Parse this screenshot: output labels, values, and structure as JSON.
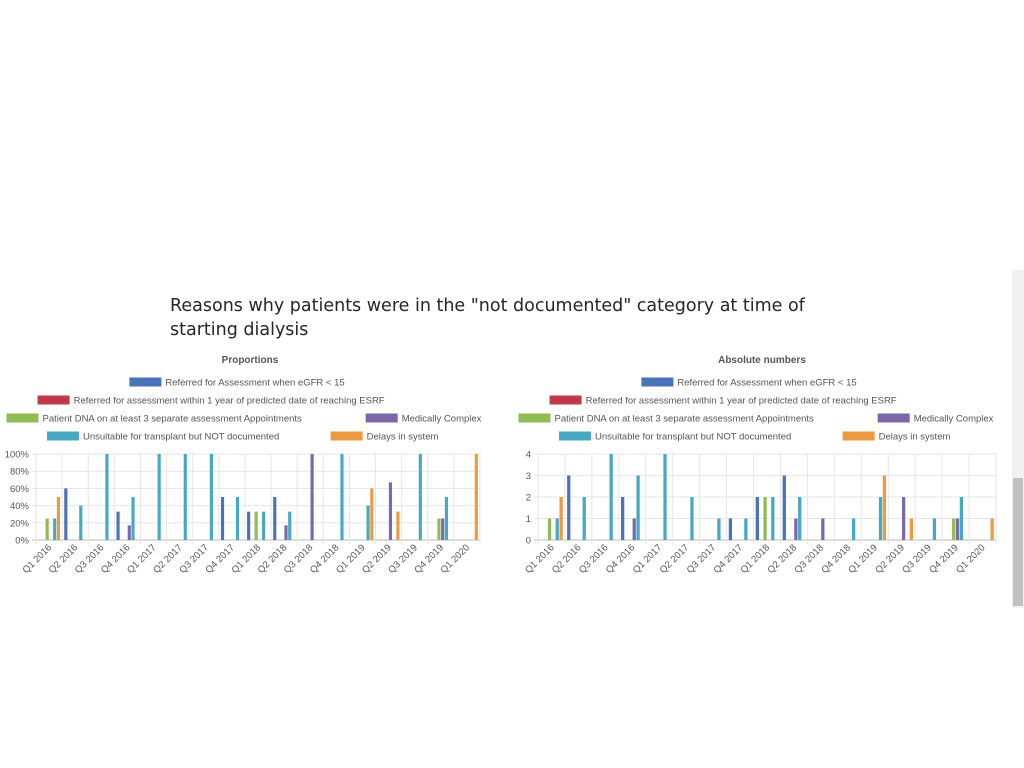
{
  "heading": "Reasons why patients were in the \"not documented\" category at time of starting dialysis",
  "colors": {
    "Referred for Assessment when eGFR < 15": "#4a72b8",
    "Referred for assessment within 1 year of predicted date of reaching ESRF": "#c0394b",
    "Patient DNA on at least 3 separate assessment Appointments": "#8fbc52",
    "Medically Complex": "#7b67ab",
    "Unsuitable for transplant but NOT documented": "#46a9c4",
    "Delays in system": "#ee9a3e"
  },
  "chart_data": [
    {
      "type": "bar",
      "title": "Proportions",
      "categories": [
        "Q1 2016",
        "Q2 2016",
        "Q3 2016",
        "Q4 2016",
        "Q1 2017",
        "Q2 2017",
        "Q3 2017",
        "Q4 2017",
        "Q1 2018",
        "Q2 2018",
        "Q3 2018",
        "Q4 2018",
        "Q1 2019",
        "Q2 2019",
        "Q3 2019",
        "Q4 2019",
        "Q1 2020"
      ],
      "yticks": [
        "0%",
        "20%",
        "40%",
        "60%",
        "80%",
        "100%"
      ],
      "ylim": [
        0,
        100
      ],
      "legend_position": "top",
      "series": [
        {
          "name": "Referred for Assessment when eGFR < 15",
          "values": [
            0,
            60,
            0,
            33,
            0,
            0,
            0,
            50,
            33,
            50,
            0,
            0,
            0,
            0,
            0,
            0,
            0
          ]
        },
        {
          "name": "Referred for assessment within 1 year of predicted date of reaching ESRF",
          "values": [
            0,
            0,
            0,
            0,
            0,
            0,
            0,
            0,
            0,
            0,
            0,
            0,
            0,
            0,
            0,
            0,
            0
          ]
        },
        {
          "name": "Patient DNA on at least 3 separate assessment Appointments",
          "values": [
            25,
            0,
            0,
            0,
            0,
            0,
            0,
            0,
            33,
            0,
            0,
            0,
            0,
            0,
            0,
            25,
            0
          ]
        },
        {
          "name": "Medically Complex",
          "values": [
            0,
            0,
            0,
            17,
            0,
            0,
            0,
            0,
            0,
            17,
            100,
            0,
            0,
            67,
            0,
            25,
            0
          ]
        },
        {
          "name": "Unsuitable for transplant but NOT documented",
          "values": [
            25,
            40,
            100,
            50,
            100,
            100,
            100,
            50,
            33,
            33,
            0,
            100,
            40,
            0,
            100,
            50,
            0
          ]
        },
        {
          "name": "Delays in system",
          "values": [
            50,
            0,
            0,
            0,
            0,
            0,
            0,
            0,
            0,
            0,
            0,
            0,
            60,
            33,
            0,
            0,
            100
          ]
        }
      ]
    },
    {
      "type": "bar",
      "title": "Absolute numbers",
      "categories": [
        "Q1 2016",
        "Q2 2016",
        "Q3 2016",
        "Q4 2016",
        "Q1 2017",
        "Q2 2017",
        "Q3 2017",
        "Q4 2017",
        "Q1 2018",
        "Q2 2018",
        "Q3 2018",
        "Q4 2018",
        "Q1 2019",
        "Q2 2019",
        "Q3 2019",
        "Q4 2019",
        "Q1 2020"
      ],
      "yticks": [
        "0",
        "1",
        "2",
        "3",
        "4"
      ],
      "ylim": [
        0,
        4
      ],
      "legend_position": "top",
      "series": [
        {
          "name": "Referred for Assessment when eGFR < 15",
          "values": [
            0,
            3,
            0,
            2,
            0,
            0,
            0,
            1,
            2,
            3,
            0,
            0,
            0,
            0,
            0,
            0,
            0
          ]
        },
        {
          "name": "Referred for assessment within 1 year of predicted date of reaching ESRF",
          "values": [
            0,
            0,
            0,
            0,
            0,
            0,
            0,
            0,
            0,
            0,
            0,
            0,
            0,
            0,
            0,
            0,
            0
          ]
        },
        {
          "name": "Patient DNA on at least 3 separate assessment Appointments",
          "values": [
            1,
            0,
            0,
            0,
            0,
            0,
            0,
            0,
            2,
            0,
            0,
            0,
            0,
            0,
            0,
            1,
            0
          ]
        },
        {
          "name": "Medically Complex",
          "values": [
            0,
            0,
            0,
            1,
            0,
            0,
            0,
            0,
            0,
            1,
            1,
            0,
            0,
            2,
            0,
            1,
            0
          ]
        },
        {
          "name": "Unsuitable for transplant but NOT documented",
          "values": [
            1,
            2,
            4,
            3,
            4,
            2,
            1,
            1,
            2,
            2,
            0,
            1,
            2,
            0,
            1,
            2,
            0
          ]
        },
        {
          "name": "Delays in system",
          "values": [
            2,
            0,
            0,
            0,
            0,
            0,
            0,
            0,
            0,
            0,
            0,
            0,
            3,
            1,
            0,
            0,
            1
          ]
        }
      ]
    }
  ]
}
